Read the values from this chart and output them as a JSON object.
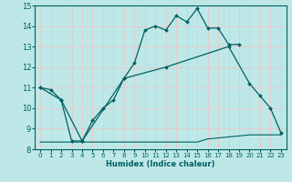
{
  "xlabel": "Humidex (Indice chaleur)",
  "xlim": [
    -0.5,
    23.5
  ],
  "ylim": [
    8,
    15
  ],
  "xticks": [
    0,
    1,
    2,
    3,
    4,
    5,
    6,
    7,
    8,
    9,
    10,
    11,
    12,
    13,
    14,
    15,
    16,
    17,
    18,
    19,
    20,
    21,
    22,
    23
  ],
  "yticks": [
    8,
    9,
    10,
    11,
    12,
    13,
    14,
    15
  ],
  "bg_color": "#bee8e8",
  "grid_color": "#e8c8c8",
  "line_color": "#006060",
  "curves": [
    {
      "x": [
        0,
        1,
        2,
        3,
        4,
        5,
        6,
        7,
        8,
        9,
        10,
        11,
        12,
        13,
        14,
        15,
        16,
        17,
        18,
        19
      ],
      "y": [
        11.0,
        10.9,
        10.4,
        8.4,
        8.4,
        9.4,
        10.0,
        10.4,
        11.45,
        12.2,
        13.8,
        14.0,
        13.8,
        14.5,
        14.2,
        14.85,
        13.9,
        13.9,
        13.1,
        13.1
      ],
      "marker": true
    },
    {
      "x": [
        0,
        2,
        4,
        8,
        12,
        18,
        20,
        21,
        22,
        23
      ],
      "y": [
        11.0,
        10.4,
        8.4,
        11.45,
        12.0,
        13.0,
        11.2,
        10.6,
        10.0,
        8.8
      ],
      "marker": true
    },
    {
      "x": [
        0,
        1,
        2,
        3,
        4,
        5,
        6,
        7,
        8,
        9,
        10,
        11,
        12,
        13,
        14,
        15,
        16,
        17,
        18,
        19,
        20,
        21,
        22,
        23
      ],
      "y": [
        8.35,
        8.35,
        8.35,
        8.35,
        8.35,
        8.35,
        8.35,
        8.35,
        8.35,
        8.35,
        8.35,
        8.35,
        8.35,
        8.35,
        8.35,
        8.35,
        8.5,
        8.55,
        8.6,
        8.65,
        8.7,
        8.7,
        8.7,
        8.7
      ],
      "marker": false
    }
  ]
}
